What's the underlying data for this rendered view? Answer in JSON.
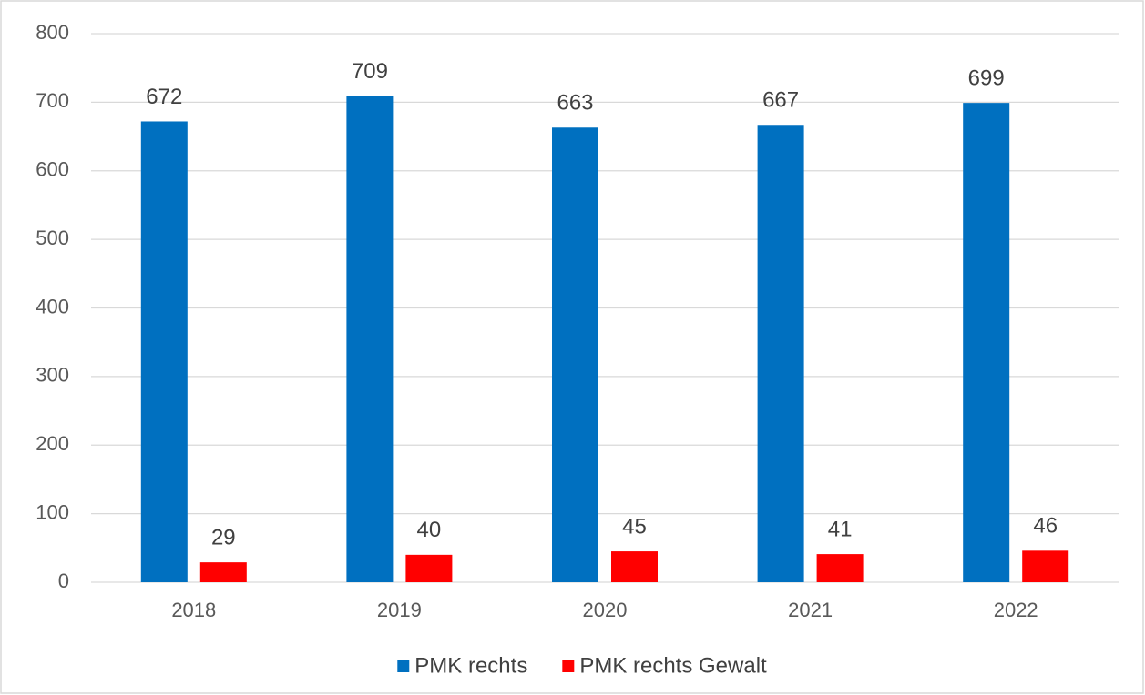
{
  "chart_data": {
    "type": "bar",
    "categories": [
      "2018",
      "2019",
      "2020",
      "2021",
      "2022"
    ],
    "series": [
      {
        "name": "PMK rechts",
        "color": "#0070c0",
        "values": [
          672,
          709,
          663,
          667,
          699
        ]
      },
      {
        "name": "PMK rechts Gewalt",
        "color": "#ff0000",
        "values": [
          29,
          40,
          45,
          41,
          46
        ]
      }
    ],
    "ylim": [
      0,
      800
    ],
    "yticks": [
      0,
      100,
      200,
      300,
      400,
      500,
      600,
      700,
      800
    ],
    "grid": true,
    "legend": "bottom"
  }
}
